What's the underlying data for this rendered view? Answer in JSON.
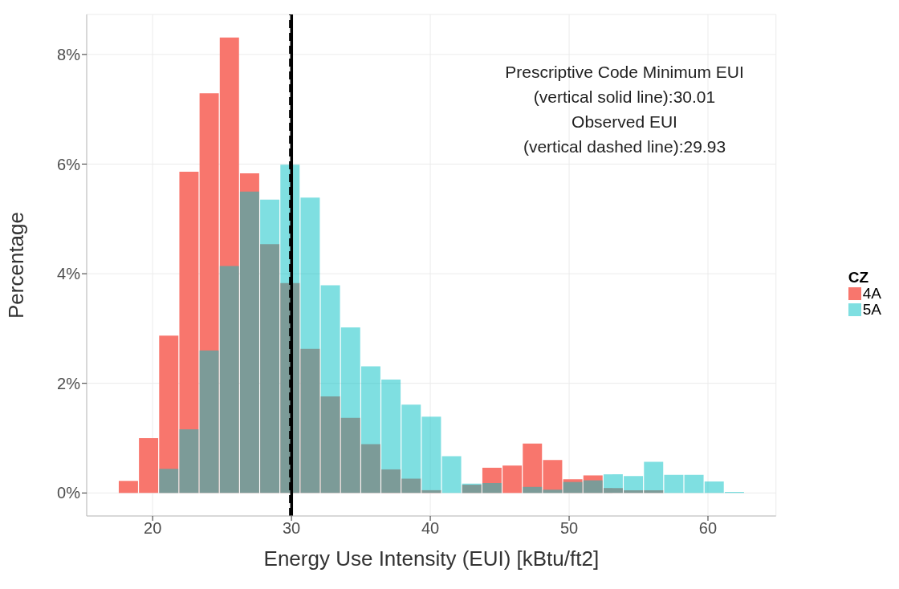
{
  "chart_data": {
    "type": "histogram",
    "xlabel": "Energy Use Intensity (EUI) [kBtu/ft2]",
    "ylabel": "Percentage",
    "legend_title": "CZ",
    "legend": "right",
    "grid": true,
    "bins": [
      17.5,
      18.96,
      20.41,
      21.87,
      23.32,
      24.78,
      26.23,
      27.69,
      29.14,
      30.6,
      32.05,
      33.51,
      34.96,
      36.42,
      37.87,
      39.33,
      40.78,
      42.24,
      43.69,
      45.15,
      46.6,
      48.06,
      49.51,
      50.97,
      52.42,
      53.88,
      55.33,
      56.79,
      58.24,
      59.7,
      61.15,
      62.61
    ],
    "series": [
      {
        "name": "4A",
        "color": "#f8766d",
        "values": [
          0.22,
          1.0,
          2.87,
          5.86,
          7.29,
          8.31,
          5.83,
          4.54,
          3.83,
          2.63,
          1.76,
          1.37,
          0.89,
          0.43,
          0.26,
          0.05,
          0,
          0.15,
          0.46,
          0.5,
          0.9,
          0.6,
          0.25,
          0.32,
          0.09,
          0.05,
          0.05,
          0,
          0,
          0,
          0
        ]
      },
      {
        "name": "5A",
        "color": "#00bfc4",
        "values": [
          0,
          0,
          0.44,
          1.16,
          2.6,
          4.14,
          5.5,
          5.35,
          5.99,
          5.39,
          3.79,
          3.02,
          2.31,
          2.07,
          1.61,
          1.39,
          0.67,
          0.17,
          0.18,
          0,
          0.11,
          0.06,
          0.2,
          0.23,
          0.34,
          0.31,
          0.57,
          0.33,
          0.33,
          0.21,
          0.02
        ]
      }
    ],
    "xlim": [
      15.25,
      64.9
    ],
    "xticks": [
      20,
      30,
      40,
      50,
      60
    ],
    "ylim": [
      -0.42,
      8.73
    ],
    "yticks": [
      {
        "value": 0,
        "label": "0%"
      },
      {
        "value": 2,
        "label": "2%"
      },
      {
        "value": 4,
        "label": "4%"
      },
      {
        "value": 6,
        "label": "6%"
      },
      {
        "value": 8,
        "label": "8%"
      }
    ],
    "ref_lines": [
      {
        "axis": "x",
        "value": 30.01,
        "color": "#000000",
        "line_style": "solid"
      },
      {
        "axis": "x",
        "value": 29.93,
        "color": "#000000",
        "line_style": "dashed"
      }
    ],
    "annotations": [
      "Prescriptive Code Minimum EUI",
      "(vertical solid line):30.01",
      "Observed EUI",
      "(vertical dashed line):29.93"
    ]
  }
}
